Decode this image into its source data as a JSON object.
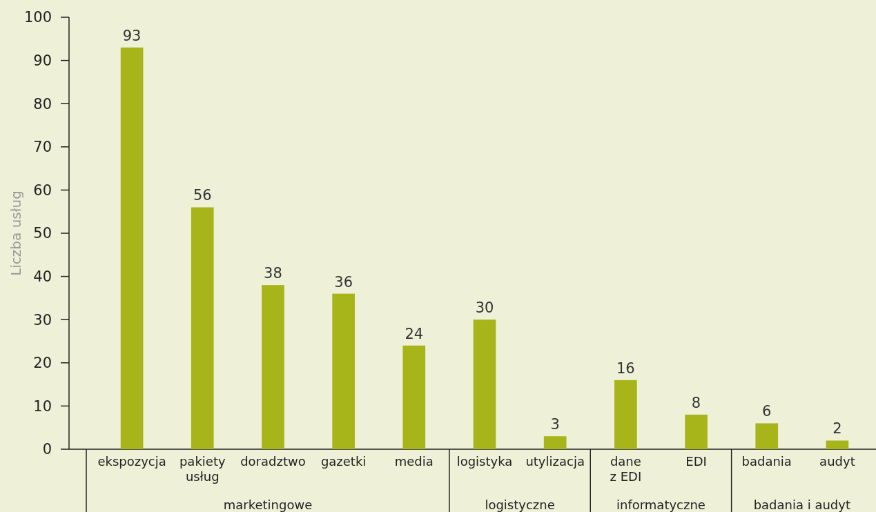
{
  "chart_data": {
    "type": "bar",
    "ylabel": "Liczba usług",
    "categories": [
      "ekspozycja",
      "pakiety\nusług",
      "doradztwo",
      "gazetki",
      "media",
      "logistyka",
      "utylizacja",
      "dane\nz EDI",
      "EDI",
      "badania",
      "audyt"
    ],
    "values": [
      93,
      56,
      38,
      36,
      24,
      30,
      3,
      16,
      8,
      6,
      2
    ],
    "color": "#a8b51a",
    "ylim": [
      0,
      100
    ],
    "yticks": [
      0,
      10,
      20,
      30,
      40,
      50,
      60,
      70,
      80,
      90,
      100
    ],
    "data_labels": true,
    "annotations": [
      "marketingowe",
      "logistyczne",
      "informatyczne",
      "badania i audyt"
    ]
  }
}
